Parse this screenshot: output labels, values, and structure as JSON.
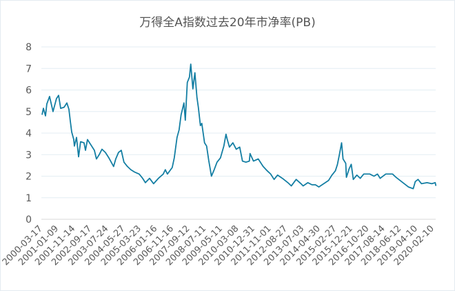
{
  "chart_data": {
    "type": "line",
    "title": "万得全A指数过去20年市净率(PB)",
    "xlabel": "",
    "ylabel": "",
    "ylim": [
      0,
      8
    ],
    "yticks": [
      "0",
      "1",
      "2",
      "3",
      "4",
      "5",
      "6",
      "7",
      "8"
    ],
    "xticks": [
      "2000-03-17",
      "2001-01-09",
      "2001-11-14",
      "2002-09-17",
      "2003-07-24",
      "2004-05-27",
      "2005-03-23",
      "2006-01-16",
      "2006-11-16",
      "2007-09-12",
      "2008-07-11",
      "2009-05-11",
      "2010-03-08",
      "2010-12-31",
      "2011-11-01",
      "2012-08-27",
      "2013-07-03",
      "2014-04-30",
      "2015-02-27",
      "2015-12-21",
      "2016-10-20",
      "2017-08-14",
      "2018-06-12",
      "2019-04-10",
      "2020-02-10"
    ],
    "grid": true,
    "legend": "none",
    "line_color": "#137ea3",
    "points": [
      [
        "2000-03-04",
        4.85
      ],
      [
        "2000-03-30",
        5.15
      ],
      [
        "2000-05-07",
        4.8
      ],
      [
        "2000-06-01",
        5.35
      ],
      [
        "2000-07-22",
        5.7
      ],
      [
        "2000-09-24",
        5.0
      ],
      [
        "2000-11-27",
        5.6
      ],
      [
        "2001-01-05",
        5.75
      ],
      [
        "2001-02-13",
        5.15
      ],
      [
        "2001-04-18",
        5.2
      ],
      [
        "2001-06-08",
        5.4
      ],
      [
        "2001-07-16",
        5.1
      ],
      [
        "2001-08-11",
        4.55
      ],
      [
        "2001-09-05",
        4.05
      ],
      [
        "2001-10-14",
        3.7
      ],
      [
        "2001-10-26",
        3.4
      ],
      [
        "2001-12-04",
        3.8
      ],
      [
        "2002-01-11",
        2.9
      ],
      [
        "2002-02-18",
        3.6
      ],
      [
        "2002-04-23",
        3.55
      ],
      [
        "2002-05-19",
        3.2
      ],
      [
        "2002-06-26",
        3.7
      ],
      [
        "2002-08-29",
        3.45
      ],
      [
        "2002-11-01",
        3.2
      ],
      [
        "2002-12-09",
        2.8
      ],
      [
        "2003-01-29",
        3.0
      ],
      [
        "2003-03-21",
        3.25
      ],
      [
        "2003-05-24",
        3.1
      ],
      [
        "2003-07-27",
        2.85
      ],
      [
        "2003-10-24",
        2.45
      ],
      [
        "2003-12-02",
        2.8
      ],
      [
        "2004-01-22",
        3.1
      ],
      [
        "2004-03-13",
        3.2
      ],
      [
        "2004-05-03",
        2.65
      ],
      [
        "2004-07-06",
        2.45
      ],
      [
        "2004-09-08",
        2.3
      ],
      [
        "2004-11-11",
        2.2
      ],
      [
        "2005-02-09",
        2.1
      ],
      [
        "2005-04-14",
        1.9
      ],
      [
        "2005-06-04",
        1.7
      ],
      [
        "2005-08-20",
        1.9
      ],
      [
        "2005-11-04",
        1.65
      ],
      [
        "2006-02-02",
        1.9
      ],
      [
        "2006-05-02",
        2.1
      ],
      [
        "2006-06-10",
        2.3
      ],
      [
        "2006-07-18",
        2.1
      ],
      [
        "2006-10-15",
        2.4
      ],
      [
        "2006-11-23",
        2.85
      ],
      [
        "2007-01-13",
        3.8
      ],
      [
        "2007-02-20",
        4.15
      ],
      [
        "2007-03-30",
        4.85
      ],
      [
        "2007-05-21",
        5.4
      ],
      [
        "2007-06-15",
        4.6
      ],
      [
        "2007-07-23",
        6.35
      ],
      [
        "2007-08-31",
        6.6
      ],
      [
        "2007-09-25",
        7.2
      ],
      [
        "2007-11-03",
        6.05
      ],
      [
        "2007-12-11",
        6.8
      ],
      [
        "2008-01-18",
        5.65
      ],
      [
        "2008-02-13",
        5.2
      ],
      [
        "2008-03-22",
        4.35
      ],
      [
        "2008-04-17",
        4.45
      ],
      [
        "2008-06-07",
        3.55
      ],
      [
        "2008-07-15",
        3.4
      ],
      [
        "2008-08-23",
        2.75
      ],
      [
        "2008-10-13",
        2.0
      ],
      [
        "2008-12-03",
        2.3
      ],
      [
        "2009-01-24",
        2.65
      ],
      [
        "2009-03-29",
        2.85
      ],
      [
        "2009-05-31",
        3.4
      ],
      [
        "2009-07-09",
        3.95
      ],
      [
        "2009-08-03",
        3.7
      ],
      [
        "2009-09-11",
        3.35
      ],
      [
        "2009-11-14",
        3.55
      ],
      [
        "2010-01-16",
        3.25
      ],
      [
        "2010-03-21",
        3.35
      ],
      [
        "2010-05-11",
        2.7
      ],
      [
        "2010-07-14",
        2.65
      ],
      [
        "2010-09-16",
        2.7
      ],
      [
        "2010-09-29",
        3.05
      ],
      [
        "2010-12-02",
        2.7
      ],
      [
        "2011-03-01",
        2.8
      ],
      [
        "2011-05-30",
        2.45
      ],
      [
        "2011-08-14",
        2.25
      ],
      [
        "2011-10-17",
        2.1
      ],
      [
        "2011-12-20",
        1.85
      ],
      [
        "2012-02-22",
        2.05
      ],
      [
        "2012-05-22",
        1.9
      ],
      [
        "2012-09-01",
        1.7
      ],
      [
        "2012-11-04",
        1.55
      ],
      [
        "2013-02-02",
        1.85
      ],
      [
        "2013-05-02",
        1.65
      ],
      [
        "2013-06-10",
        1.55
      ],
      [
        "2013-09-07",
        1.7
      ],
      [
        "2013-11-23",
        1.6
      ],
      [
        "2014-01-26",
        1.6
      ],
      [
        "2014-03-30",
        1.5
      ],
      [
        "2014-06-28",
        1.65
      ],
      [
        "2014-09-25",
        1.8
      ],
      [
        "2014-11-28",
        2.05
      ],
      [
        "2015-01-31",
        2.25
      ],
      [
        "2015-03-10",
        2.55
      ],
      [
        "2015-04-18",
        3.05
      ],
      [
        "2015-05-26",
        3.55
      ],
      [
        "2015-06-21",
        2.8
      ],
      [
        "2015-08-11",
        2.6
      ],
      [
        "2015-08-23",
        1.95
      ],
      [
        "2015-10-14",
        2.35
      ],
      [
        "2015-11-21",
        2.55
      ],
      [
        "2015-12-29",
        1.85
      ],
      [
        "2016-03-03",
        2.05
      ],
      [
        "2016-05-06",
        1.9
      ],
      [
        "2016-07-09",
        2.1
      ],
      [
        "2016-11-01",
        2.1
      ],
      [
        "2017-01-16",
        2.0
      ],
      [
        "2017-03-21",
        2.1
      ],
      [
        "2017-05-11",
        1.9
      ],
      [
        "2017-08-22",
        2.1
      ],
      [
        "2017-12-27",
        2.1
      ],
      [
        "2018-03-01",
        1.95
      ],
      [
        "2018-06-11",
        1.75
      ],
      [
        "2018-10-17",
        1.5
      ],
      [
        "2019-01-15",
        1.42
      ],
      [
        "2019-02-22",
        1.75
      ],
      [
        "2019-04-14",
        1.85
      ],
      [
        "2019-06-17",
        1.65
      ],
      [
        "2019-09-27",
        1.7
      ],
      [
        "2019-12-26",
        1.65
      ],
      [
        "2020-02-27",
        1.7
      ],
      [
        "2020-03-11",
        1.55
      ]
    ]
  }
}
